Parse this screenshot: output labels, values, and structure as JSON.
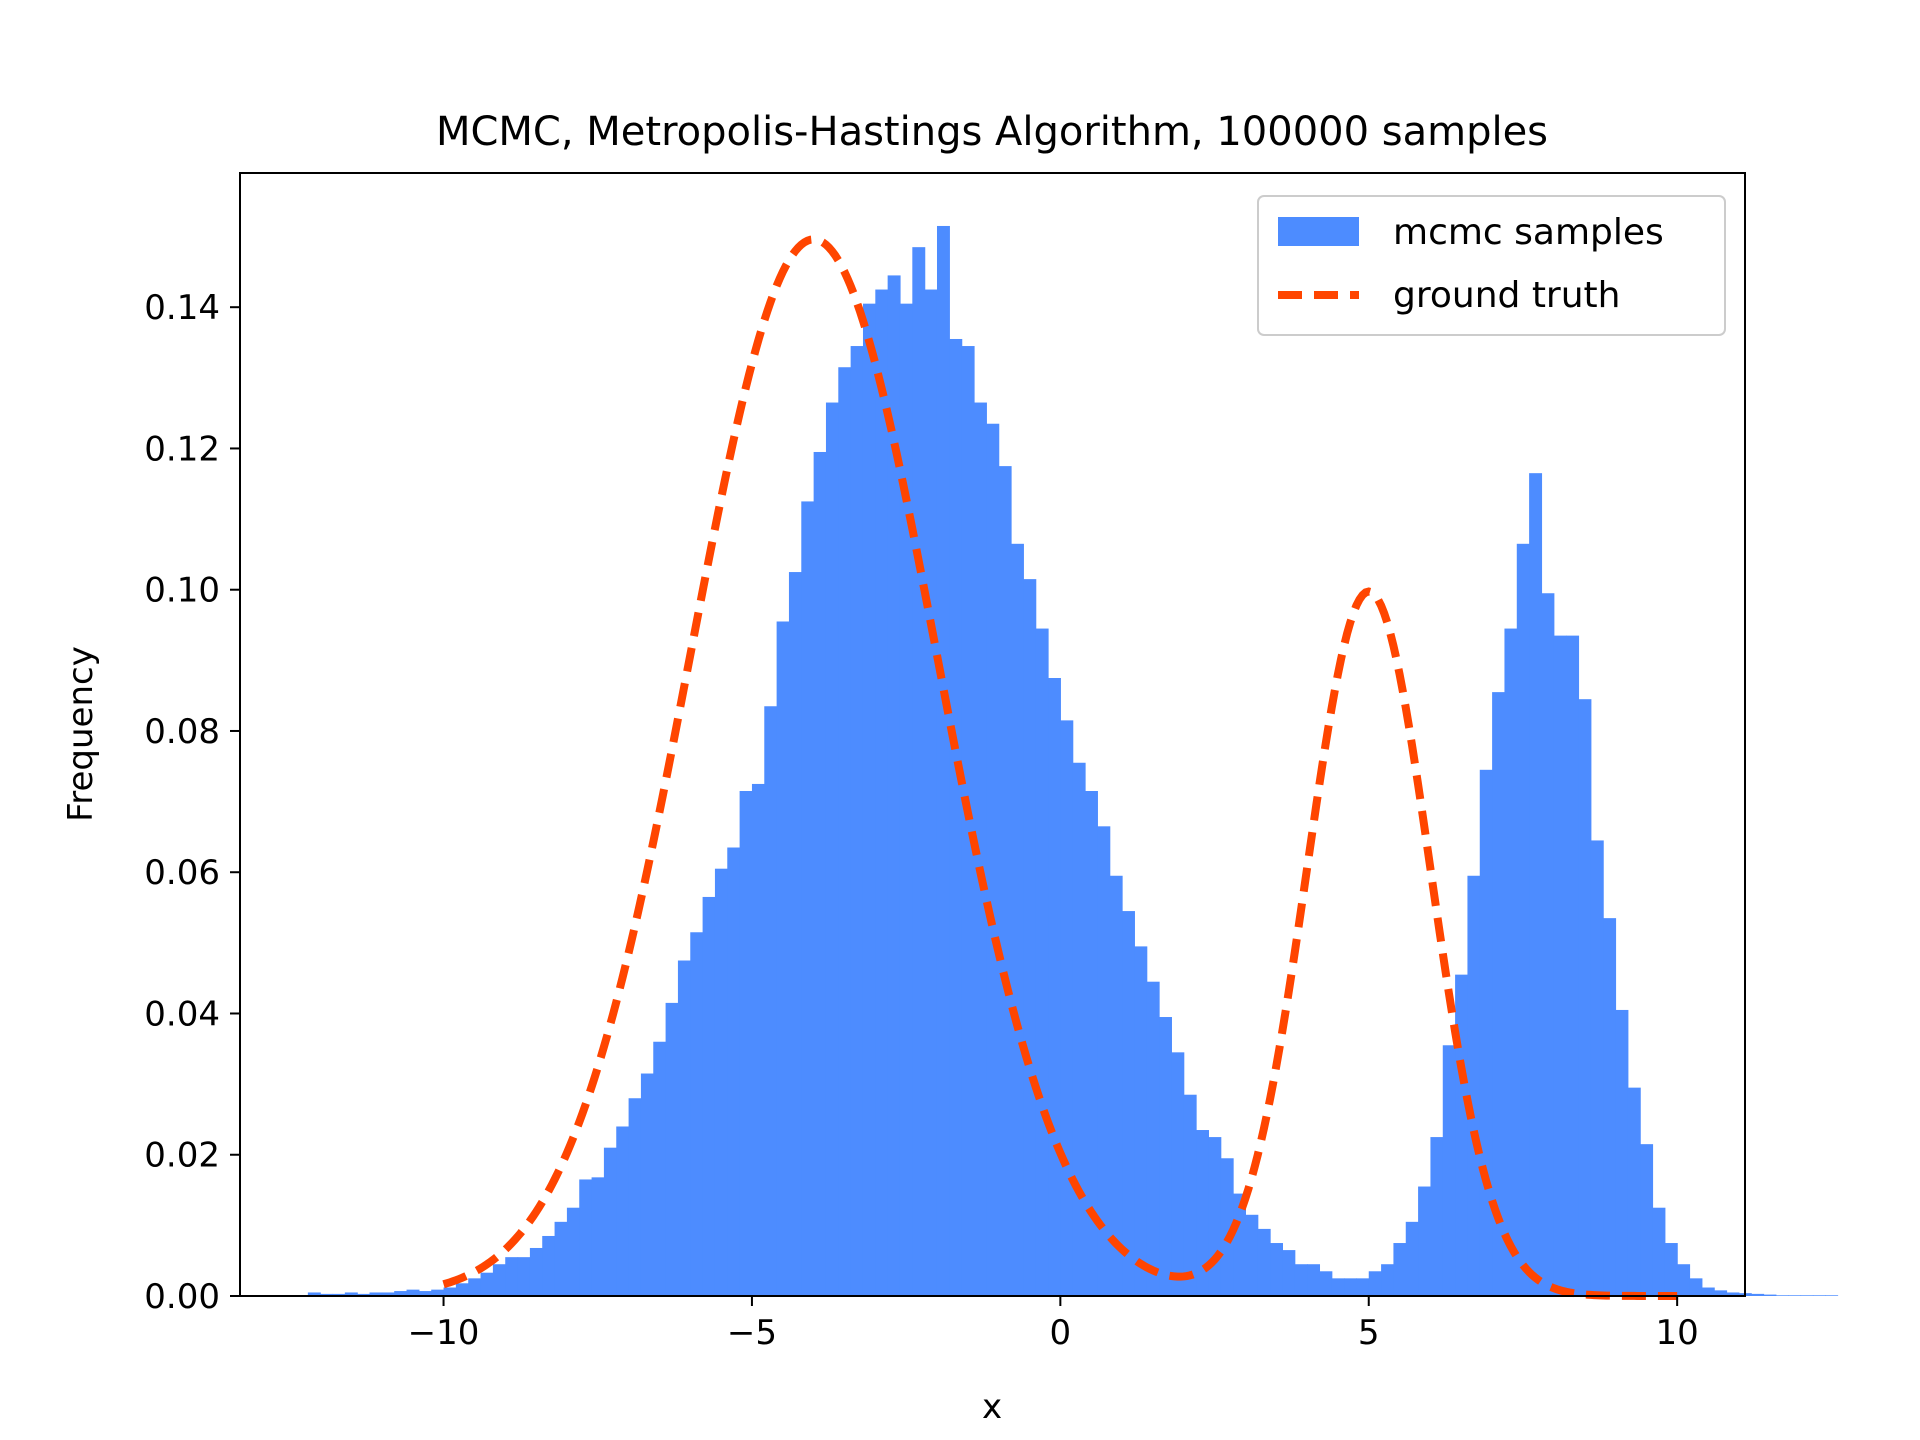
{
  "chart_data": {
    "type": "bar",
    "title": "MCMC, Metropolis-Hastings Algorithm, 100000 samples",
    "xlabel": "x",
    "ylabel": "Frequency",
    "xlim": [
      -13.3,
      11.1
    ],
    "ylim": [
      0,
      0.159
    ],
    "xticks": [
      -10,
      -5,
      0,
      5,
      10
    ],
    "xtick_labels": [
      "−10",
      "−5",
      "0",
      "5",
      "10"
    ],
    "yticks": [
      0,
      0.02,
      0.04,
      0.06,
      0.08,
      0.1,
      0.12,
      0.14
    ],
    "ytick_labels": [
      "0.00",
      "0.02",
      "0.04",
      "0.06",
      "0.08",
      "0.10",
      "0.12",
      "0.14"
    ],
    "grid": false,
    "legend": {
      "location": "top-right",
      "entries": [
        "mcmc samples",
        "ground truth"
      ]
    },
    "colors": {
      "histogram": "#4d8cff",
      "ground_truth": "#ff4500"
    },
    "series": [
      {
        "name": "mcmc samples",
        "type": "histogram",
        "bin_start": -12.2,
        "bin_width": 0.2,
        "values": [
          0.0005,
          0.0003,
          0.0003,
          0.0005,
          0.0003,
          0.0005,
          0.0005,
          0.0007,
          0.0009,
          0.0007,
          0.0009,
          0.0012,
          0.0018,
          0.0025,
          0.0033,
          0.0045,
          0.0055,
          0.0055,
          0.0068,
          0.0085,
          0.0105,
          0.0125,
          0.0165,
          0.0168,
          0.021,
          0.024,
          0.028,
          0.0315,
          0.036,
          0.0415,
          0.0475,
          0.0515,
          0.0565,
          0.0605,
          0.0635,
          0.0715,
          0.0725,
          0.0835,
          0.0955,
          0.1025,
          0.1125,
          0.1195,
          0.1265,
          0.1315,
          0.1345,
          0.1405,
          0.1425,
          0.1445,
          0.1405,
          0.1485,
          0.1425,
          0.1515,
          0.1355,
          0.1345,
          0.1265,
          0.1235,
          0.1175,
          0.1065,
          0.1015,
          0.0945,
          0.0875,
          0.0815,
          0.0755,
          0.0715,
          0.0665,
          0.0595,
          0.0545,
          0.0495,
          0.0445,
          0.0395,
          0.0345,
          0.0285,
          0.0235,
          0.0225,
          0.0195,
          0.0145,
          0.0115,
          0.0095,
          0.0075,
          0.0065,
          0.0045,
          0.0045,
          0.0035,
          0.0025,
          0.0025,
          0.0025,
          0.0035,
          0.0045,
          0.0075,
          0.0105,
          0.0155,
          0.0225,
          0.0355,
          0.0455,
          0.0595,
          0.0745,
          0.0855,
          0.0945,
          0.1065,
          0.1165,
          0.0995,
          0.0935,
          0.0935,
          0.0845,
          0.0645,
          0.0535,
          0.0405,
          0.0295,
          0.0215,
          0.0125,
          0.0075,
          0.0045,
          0.0025,
          0.0012,
          0.0008,
          0.0005,
          0.0004,
          0.0003,
          0.0002,
          0.0001,
          0.0001,
          0.0001,
          0.0001,
          0.0001
        ]
      },
      {
        "name": "ground truth",
        "type": "line",
        "style": "dashed",
        "x_range": [
          -10,
          10
        ],
        "points": [
          [
            -10,
            0.0025
          ],
          [
            -9,
            0.008
          ],
          [
            -8,
            0.019
          ],
          [
            -7,
            0.042
          ],
          [
            -6,
            0.077
          ],
          [
            -5,
            0.119
          ],
          [
            -4,
            0.15
          ],
          [
            -3,
            0.139
          ],
          [
            -2,
            0.1
          ],
          [
            -1,
            0.06
          ],
          [
            0,
            0.028
          ],
          [
            1,
            0.01
          ],
          [
            2,
            0.0028
          ],
          [
            3,
            0.013
          ],
          [
            4,
            0.06
          ],
          [
            5,
            0.0985
          ],
          [
            6,
            0.06
          ],
          [
            7,
            0.014
          ],
          [
            8,
            0.002
          ],
          [
            9,
            0.0003
          ],
          [
            10,
            0.0001
          ]
        ]
      }
    ]
  }
}
